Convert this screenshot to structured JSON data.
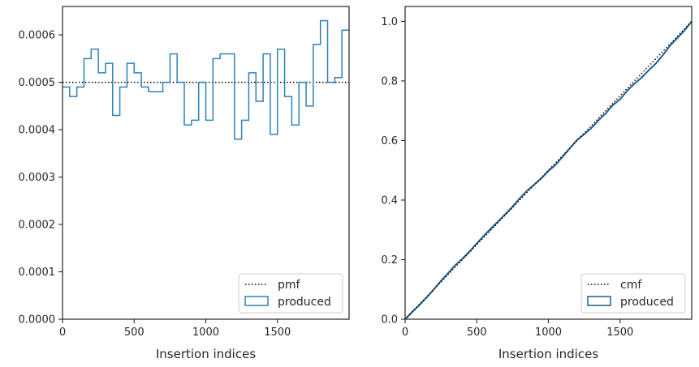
{
  "colors": {
    "step": "#2f82b6",
    "cmf_step": "#1f5f8f",
    "reference": "#000000",
    "frame": "#262626"
  },
  "chart_data": [
    {
      "type": "step",
      "xlabel": "Insertion indices",
      "ylabel": "",
      "xlim": [
        0,
        2000
      ],
      "ylim": [
        0,
        0.00066
      ],
      "x_ticks": [
        0,
        500,
        1000,
        1500
      ],
      "x_tick_labels": [
        "0",
        "500",
        "1000",
        "1500"
      ],
      "y_ticks": [
        0,
        0.0001,
        0.0002,
        0.0003,
        0.0004,
        0.0005,
        0.0006
      ],
      "y_tick_labels": [
        "0.0000",
        "0.0001",
        "0.0002",
        "0.0003",
        "0.0004",
        "0.0005",
        "0.0006"
      ],
      "legend_position": "lower-right",
      "series": [
        {
          "name": "pmf",
          "kind": "reference-line",
          "style": "dotted",
          "y": 0.0005
        },
        {
          "name": "produced",
          "kind": "step-histogram",
          "bin_width": 50,
          "bin_starts": [
            0,
            50,
            100,
            150,
            200,
            250,
            300,
            350,
            400,
            450,
            500,
            550,
            600,
            650,
            700,
            750,
            800,
            850,
            900,
            950,
            1000,
            1050,
            1100,
            1150,
            1200,
            1250,
            1300,
            1350,
            1400,
            1450,
            1500,
            1550,
            1600,
            1650,
            1700,
            1750,
            1800,
            1850,
            1900,
            1950
          ],
          "values": [
            0.00049,
            0.00047,
            0.00049,
            0.00055,
            0.00057,
            0.00052,
            0.00054,
            0.00043,
            0.00049,
            0.00054,
            0.00052,
            0.00049,
            0.00048,
            0.00048,
            0.0005,
            0.00056,
            0.0005,
            0.00041,
            0.00042,
            0.0005,
            0.00042,
            0.00055,
            0.00056,
            0.00056,
            0.00038,
            0.00042,
            0.00052,
            0.00046,
            0.00056,
            0.00039,
            0.00057,
            0.00047,
            0.00041,
            0.0005,
            0.00045,
            0.00058,
            0.00063,
            0.0005,
            0.00051,
            0.00061
          ]
        }
      ]
    },
    {
      "type": "line",
      "xlabel": "Insertion indices",
      "ylabel": "",
      "xlim": [
        0,
        2000
      ],
      "ylim": [
        0,
        1.05
      ],
      "x_ticks": [
        0,
        500,
        1000,
        1500
      ],
      "x_tick_labels": [
        "0",
        "500",
        "1000",
        "1500"
      ],
      "y_ticks": [
        0,
        0.2,
        0.4,
        0.6,
        0.8,
        1.0
      ],
      "y_tick_labels": [
        "0.0",
        "0.2",
        "0.4",
        "0.6",
        "0.8",
        "1.0"
      ],
      "legend_position": "lower-right",
      "series": [
        {
          "name": "cmf",
          "kind": "reference-line",
          "style": "dotted",
          "x": [
            0,
            2000
          ],
          "y": [
            0,
            1.0
          ]
        },
        {
          "name": "produced",
          "kind": "step-cumulative",
          "x": [
            0,
            50,
            100,
            150,
            200,
            250,
            300,
            350,
            400,
            450,
            500,
            550,
            600,
            650,
            700,
            750,
            800,
            850,
            900,
            950,
            1000,
            1050,
            1100,
            1150,
            1200,
            1250,
            1300,
            1350,
            1400,
            1450,
            1500,
            1550,
            1600,
            1650,
            1700,
            1750,
            1800,
            1850,
            1900,
            1950,
            2000
          ],
          "y": [
            0,
            0.0245,
            0.048,
            0.0725,
            0.1,
            0.1285,
            0.1545,
            0.1815,
            0.203,
            0.2275,
            0.2545,
            0.2805,
            0.305,
            0.329,
            0.353,
            0.378,
            0.406,
            0.431,
            0.4515,
            0.4725,
            0.4975,
            0.5185,
            0.546,
            0.574,
            0.602,
            0.621,
            0.642,
            0.668,
            0.691,
            0.719,
            0.7385,
            0.767,
            0.7905,
            0.811,
            0.836,
            0.8585,
            0.8875,
            0.919,
            0.944,
            0.9695,
            1.0
          ]
        }
      ]
    }
  ]
}
